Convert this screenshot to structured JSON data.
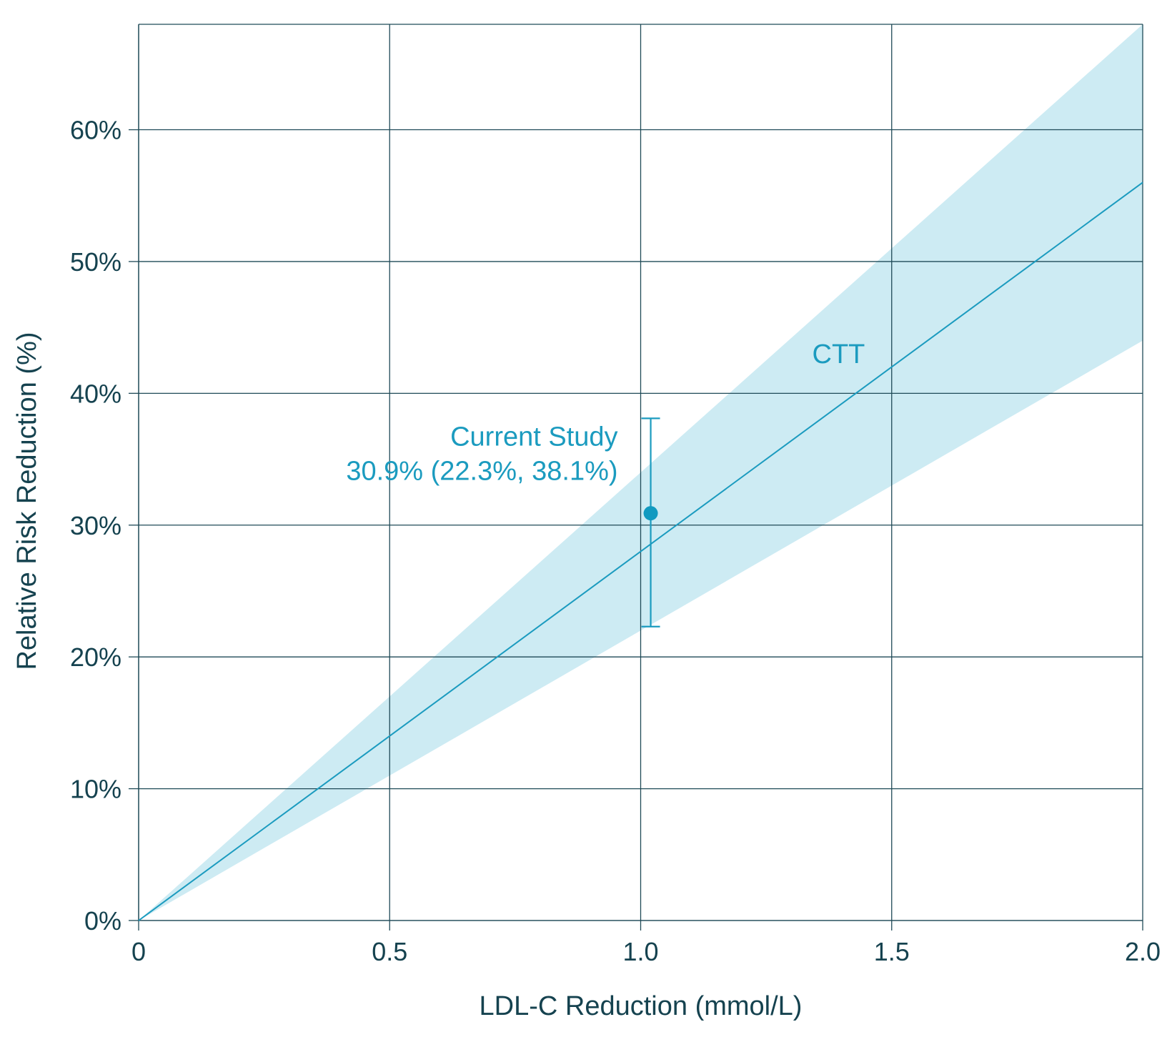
{
  "chart_data": {
    "type": "line",
    "xlabel": "LDL-C Reduction (mmol/L)",
    "ylabel": "Relative Risk Reduction (%)",
    "xlim": [
      0,
      2.0
    ],
    "ylim": [
      0,
      68
    ],
    "x_ticks": [
      {
        "value": 0,
        "label": "0"
      },
      {
        "value": 0.5,
        "label": "0.5"
      },
      {
        "value": 1.0,
        "label": "1.0"
      },
      {
        "value": 1.5,
        "label": "1.5"
      },
      {
        "value": 2.0,
        "label": "2.0"
      }
    ],
    "y_ticks": [
      {
        "value": 0,
        "label": "0%"
      },
      {
        "value": 10,
        "label": "10%"
      },
      {
        "value": 20,
        "label": "20%"
      },
      {
        "value": 30,
        "label": "30%"
      },
      {
        "value": 40,
        "label": "40%"
      },
      {
        "value": 50,
        "label": "50%"
      },
      {
        "value": 60,
        "label": "60%"
      }
    ],
    "grid": true,
    "series": [
      {
        "name": "CTT",
        "x": [
          0,
          2.0
        ],
        "y": [
          0,
          56
        ],
        "band_upper": [
          0,
          68
        ],
        "band_lower": [
          0,
          44
        ],
        "color": "#1b9bbf",
        "band_color": "#cdebf3"
      }
    ],
    "point": {
      "name": "Current Study",
      "x": 1.02,
      "y": 30.9,
      "ci_low": 22.3,
      "ci_high": 38.1,
      "label_line1": "Current Study",
      "label_line2": "30.9% (22.3%, 38.1%)",
      "color": "#1b9bbf"
    },
    "annotations": [
      {
        "text": "CTT",
        "x": 1.38,
        "y": 42.3
      }
    ],
    "colors": {
      "grid": "#1f4a57",
      "text": "#15424f",
      "accent": "#1b9bbf"
    }
  }
}
